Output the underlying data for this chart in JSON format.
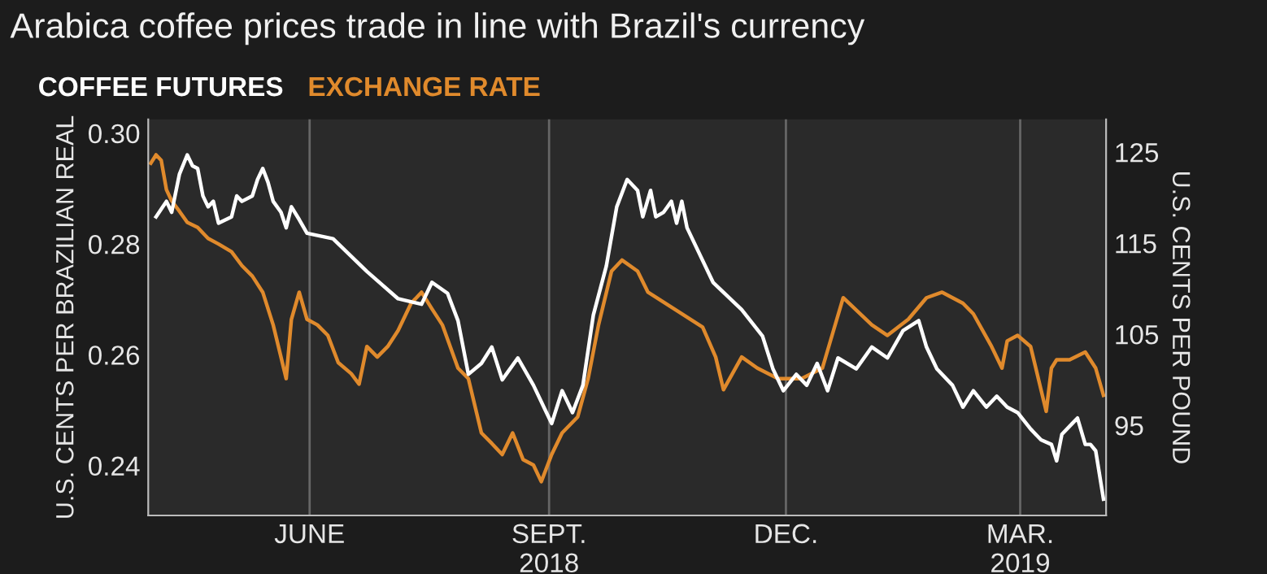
{
  "chart_data": {
    "type": "line",
    "title": "Arabica coffee prices trade in line with Brazil's currency",
    "ylabel": "U.S. CENTS PER BRAZILIAN REAL",
    "y2label": "U.S. CENTS PER POUND",
    "legend": "top left",
    "grid": "x",
    "marker": "none",
    "line_style": "solid",
    "xlim": [
      "2018-03-31",
      "2019-04-03"
    ],
    "xticks": [
      {
        "value": "2018-06-01",
        "label": "JUNE"
      },
      {
        "value": "2018-09-01",
        "label": "SEPT.\n2018"
      },
      {
        "value": "2018-12-01",
        "label": "DEC."
      },
      {
        "value": "2019-03-01",
        "label": "MAR.\n2019"
      }
    ],
    "ylim": [
      0.231,
      0.3025
    ],
    "yticks": [
      {
        "value": 0.24,
        "label": "0.24"
      },
      {
        "value": 0.26,
        "label": "0.26"
      },
      {
        "value": 0.28,
        "label": "0.28"
      },
      {
        "value": 0.3,
        "label": "0.30"
      }
    ],
    "y2lim": [
      85.1,
      128.6
    ],
    "y2ticks": [
      95,
      105,
      115,
      125
    ],
    "series": [
      {
        "name": "COFFEE FUTURES",
        "color": "#ffffff",
        "axis": "y2",
        "x": [
          "2018-04-03",
          "2018-04-07",
          "2018-04-09",
          "2018-04-12",
          "2018-04-15",
          "2018-04-17",
          "2018-04-19",
          "2018-04-21",
          "2018-04-23",
          "2018-04-25",
          "2018-04-27",
          "2018-05-02",
          "2018-05-04",
          "2018-05-06",
          "2018-05-10",
          "2018-05-12",
          "2018-05-14",
          "2018-05-16",
          "2018-05-18",
          "2018-05-21",
          "2018-05-23",
          "2018-05-25",
          "2018-05-28",
          "2018-05-31",
          "2018-06-10",
          "2018-06-23",
          "2018-07-05",
          "2018-07-14",
          "2018-07-18",
          "2018-07-24",
          "2018-07-28",
          "2018-08-01",
          "2018-08-06",
          "2018-08-10",
          "2018-08-14",
          "2018-08-20",
          "2018-08-26",
          "2018-08-31",
          "2018-09-02",
          "2018-09-06",
          "2018-09-10",
          "2018-09-14",
          "2018-09-18",
          "2018-09-23",
          "2018-09-27",
          "2018-10-01",
          "2018-10-05",
          "2018-10-07",
          "2018-10-10",
          "2018-10-12",
          "2018-10-15",
          "2018-10-18",
          "2018-10-20",
          "2018-10-22",
          "2018-10-24",
          "2018-11-03",
          "2018-11-14",
          "2018-11-22",
          "2018-11-26",
          "2018-11-30",
          "2018-12-05",
          "2018-12-09",
          "2018-12-13",
          "2018-12-17",
          "2018-12-21",
          "2018-12-28",
          "2019-01-03",
          "2019-01-09",
          "2019-01-15",
          "2019-01-21",
          "2019-01-24",
          "2019-01-28",
          "2019-02-03",
          "2019-02-07",
          "2019-02-11",
          "2019-02-16",
          "2019-02-20",
          "2019-02-24",
          "2019-02-28",
          "2019-03-05",
          "2019-03-09",
          "2019-03-13",
          "2019-03-15",
          "2019-03-17",
          "2019-03-21",
          "2019-03-23",
          "2019-03-26",
          "2019-03-28",
          "2019-03-30",
          "2019-04-02"
        ],
        "values": [
          117.9,
          119.6,
          118.4,
          122.6,
          124.7,
          123.5,
          123.2,
          120.2,
          119.0,
          119.6,
          117.2,
          117.9,
          120.2,
          119.6,
          120.2,
          122.0,
          123.2,
          121.7,
          119.6,
          118.4,
          116.7,
          119.0,
          117.6,
          116.1,
          115.5,
          111.9,
          108.9,
          108.3,
          110.7,
          109.5,
          106.5,
          100.6,
          101.8,
          103.6,
          100.0,
          102.4,
          99.4,
          96.4,
          95.2,
          98.8,
          96.4,
          99.4,
          107.1,
          112.5,
          119.0,
          122.0,
          120.8,
          117.9,
          120.8,
          117.9,
          118.4,
          119.6,
          117.2,
          119.6,
          116.7,
          110.7,
          107.7,
          104.8,
          101.2,
          98.8,
          100.6,
          99.4,
          101.8,
          98.8,
          102.4,
          101.2,
          103.6,
          102.4,
          105.4,
          106.5,
          103.6,
          101.2,
          99.4,
          97.0,
          98.8,
          97.0,
          98.2,
          97.0,
          96.4,
          94.6,
          93.4,
          92.9,
          91.1,
          94.0,
          95.2,
          95.8,
          92.9,
          92.9,
          92.2,
          86.9
        ]
      },
      {
        "name": "EXCHANGE RATE",
        "color": "#e08a2c",
        "x": [
          "2018-04-01",
          "2018-04-03",
          "2018-04-05",
          "2018-04-07",
          "2018-04-09",
          "2018-04-12",
          "2018-04-15",
          "2018-04-19",
          "2018-04-23",
          "2018-04-27",
          "2018-05-02",
          "2018-05-06",
          "2018-05-10",
          "2018-05-14",
          "2018-05-18",
          "2018-05-21",
          "2018-05-23",
          "2018-05-25",
          "2018-05-28",
          "2018-05-31",
          "2018-06-04",
          "2018-06-08",
          "2018-06-12",
          "2018-06-17",
          "2018-06-20",
          "2018-06-23",
          "2018-06-27",
          "2018-07-01",
          "2018-07-05",
          "2018-07-10",
          "2018-07-14",
          "2018-07-18",
          "2018-07-22",
          "2018-07-28",
          "2018-08-01",
          "2018-08-06",
          "2018-08-10",
          "2018-08-14",
          "2018-08-18",
          "2018-08-22",
          "2018-08-26",
          "2018-08-29",
          "2018-09-02",
          "2018-09-06",
          "2018-09-12",
          "2018-09-16",
          "2018-09-20",
          "2018-09-25",
          "2018-09-29",
          "2018-10-05",
          "2018-10-09",
          "2018-10-20",
          "2018-10-30",
          "2018-11-04",
          "2018-11-07",
          "2018-11-14",
          "2018-11-20",
          "2018-11-28",
          "2018-12-07",
          "2018-12-15",
          "2018-12-23",
          "2019-01-03",
          "2019-01-09",
          "2019-01-17",
          "2019-01-24",
          "2019-01-30",
          "2019-02-07",
          "2019-02-11",
          "2019-02-18",
          "2019-02-22",
          "2019-02-24",
          "2019-02-28",
          "2019-03-05",
          "2019-03-07",
          "2019-03-11",
          "2019-03-13",
          "2019-03-15",
          "2019-03-20",
          "2019-03-26",
          "2019-03-30",
          "2019-04-02"
        ],
        "values": [
          0.2946,
          0.2961,
          0.2951,
          0.2898,
          0.2878,
          0.2859,
          0.2839,
          0.283,
          0.281,
          0.28,
          0.2786,
          0.2761,
          0.2742,
          0.2713,
          0.2654,
          0.2596,
          0.2557,
          0.2664,
          0.2713,
          0.2664,
          0.2654,
          0.2635,
          0.2586,
          0.2566,
          0.2547,
          0.2615,
          0.2596,
          0.2615,
          0.2644,
          0.2693,
          0.2713,
          0.2683,
          0.2654,
          0.2576,
          0.2557,
          0.2459,
          0.244,
          0.242,
          0.2459,
          0.2411,
          0.2401,
          0.2371,
          0.242,
          0.2459,
          0.2488,
          0.2557,
          0.2654,
          0.2751,
          0.2771,
          0.2751,
          0.2713,
          0.268,
          0.265,
          0.2596,
          0.2537,
          0.2596,
          0.2576,
          0.2557,
          0.2557,
          0.2576,
          0.2703,
          0.2654,
          0.2635,
          0.2664,
          0.2703,
          0.2713,
          0.2693,
          0.2674,
          0.2615,
          0.2576,
          0.2625,
          0.2635,
          0.2615,
          0.2576,
          0.2498,
          0.2576,
          0.2591,
          0.2591,
          0.2605,
          0.2576,
          0.2527
        ]
      }
    ]
  }
}
